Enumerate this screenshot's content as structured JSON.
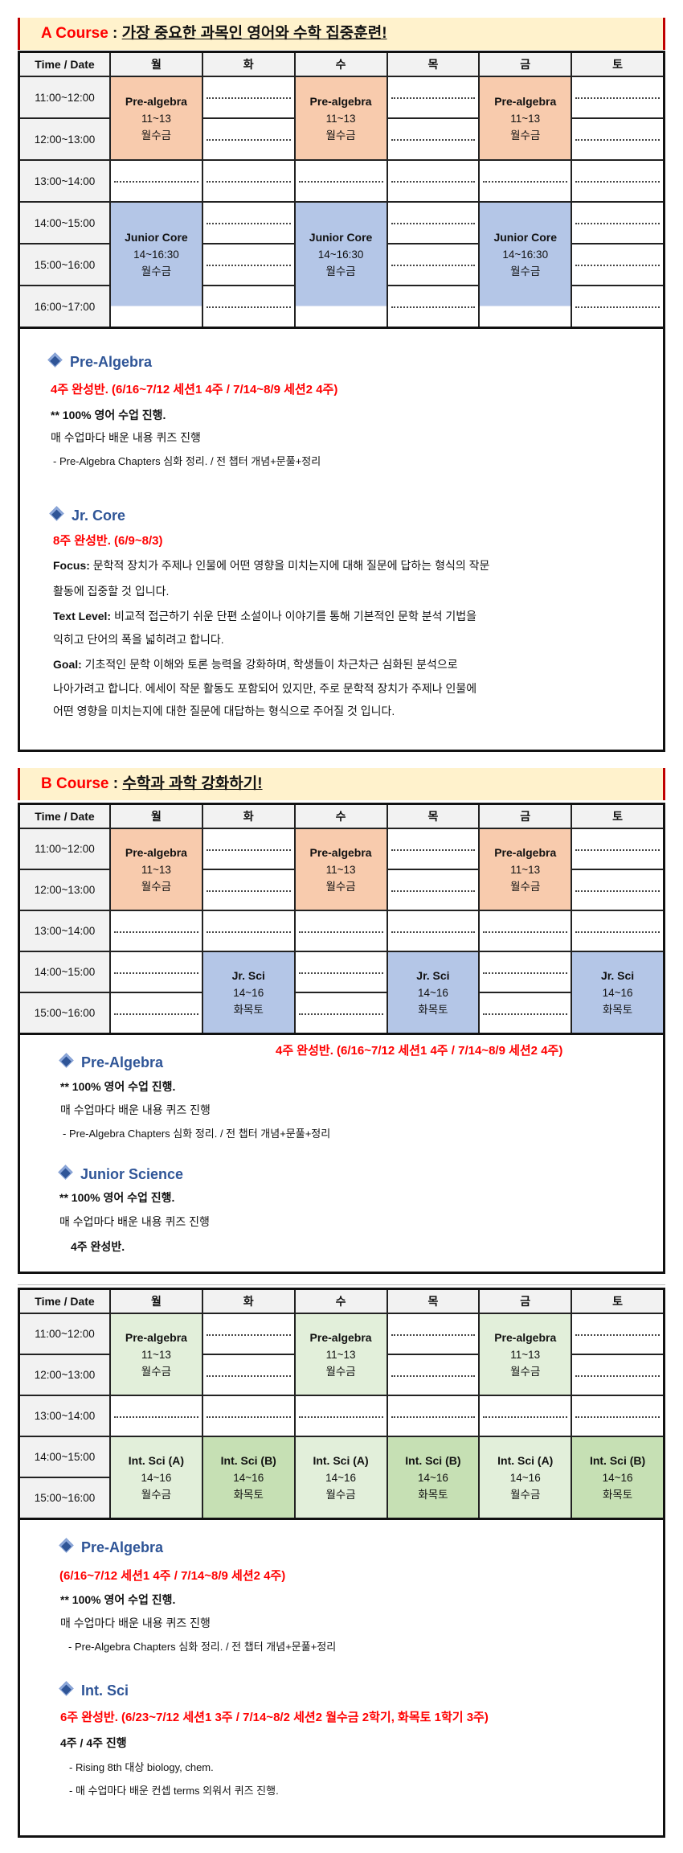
{
  "colors": {
    "orange": "#F8CBAD",
    "blue": "#B4C6E7",
    "green_light": "#E2EFDA",
    "green": "#C6E0B4",
    "accent_red": "#FF0000",
    "heading_blue": "#2F5597"
  },
  "courses": [
    {
      "label": "A Course",
      "sep": " : ",
      "title": "가장 중요한 과목인 영어와 수학 집중훈련!",
      "table": {
        "corner": "Time / Date",
        "days": [
          "월",
          "화",
          "수",
          "목",
          "금",
          "토"
        ],
        "times": [
          "11:00~12:00",
          "12:00~13:00",
          "13:00~14:00",
          "14:00~15:00",
          "15:00~16:00",
          "16:00~17:00"
        ],
        "blocks": [
          {
            "col": 1,
            "row": 0,
            "span": 2,
            "title": "Pre-algebra",
            "time": "11~13",
            "days": "월수금",
            "color": "#F8CBAD"
          },
          {
            "col": 3,
            "row": 0,
            "span": 2,
            "title": "Pre-algebra",
            "time": "11~13",
            "days": "월수금",
            "color": "#F8CBAD"
          },
          {
            "col": 5,
            "row": 0,
            "span": 2,
            "title": "Pre-algebra",
            "time": "11~13",
            "days": "월수금",
            "color": "#F8CBAD"
          },
          {
            "col": 1,
            "row": 3,
            "span": 2.5,
            "title": "Junior Core",
            "time": "14~16:30",
            "days": "월수금",
            "color": "#B4C6E7"
          },
          {
            "col": 3,
            "row": 3,
            "span": 2.5,
            "title": "Junior Core",
            "time": "14~16:30",
            "days": "월수금",
            "color": "#B4C6E7"
          },
          {
            "col": 5,
            "row": 3,
            "span": 2.5,
            "title": "Junior Core",
            "time": "14~16:30",
            "days": "월수금",
            "color": "#B4C6E7"
          }
        ]
      },
      "notes": {
        "pa_heading": "Pre-Algebra",
        "pa_schedule": "4주 완성반. (6/16~7/12 세션1 4주  /  7/14~8/9 세션2 4주)",
        "pa_english": "** 100% 영어 수업 진행.",
        "pa_quiz": "매 수업마다 배운 내용 퀴즈 진행",
        "pa_chapters": "- Pre-Algebra Chapters 심화 정리. / 전 챕터 개념+문풀+정리",
        "jc_heading": "Jr. Core",
        "jc_schedule": "8주 완성반. (6/9~8/3)",
        "focus_label": "Focus:",
        "focus_1": " 문학적 장치가 주제나 인물에 어떤 영향을 미치는지에 대해 질문에 답하는 형식의 작문",
        "focus_2": "활동에 집중할 것 입니다.",
        "level_label": "Text Level:",
        "level_1": " 비교적 접근하기 쉬운 단편 소설이나 이야기를 통해 기본적인 문학 분석 기법을",
        "level_2": "익히고 단어의 폭을 넓히려고 합니다.",
        "goal_label": "Goal:",
        "goal_1": " 기초적인 문학 이해와 토론 능력을 강화하며, 학생들이 차근차근 심화된 분석으로",
        "goal_2": "나아가려고 합니다. 에세이 작문 활동도 포함되어 있지만, 주로 문학적 장치가 주제나 인물에",
        "goal_3": "어떤 영향을 미치는지에 대한 질문에 대답하는 형식으로 주어질 것 입니다."
      }
    },
    {
      "label": "B Course",
      "sep": " : ",
      "title": "수학과 과학 강화하기!",
      "table": {
        "corner": "Time / Date",
        "days": [
          "월",
          "화",
          "수",
          "목",
          "금",
          "토"
        ],
        "times": [
          "11:00~12:00",
          "12:00~13:00",
          "13:00~14:00",
          "14:00~15:00",
          "15:00~16:00"
        ],
        "blocks": [
          {
            "col": 1,
            "row": 0,
            "span": 2,
            "title": "Pre-algebra",
            "time": "11~13",
            "days": "월수금",
            "color": "#F8CBAD"
          },
          {
            "col": 3,
            "row": 0,
            "span": 2,
            "title": "Pre-algebra",
            "time": "11~13",
            "days": "월수금",
            "color": "#F8CBAD"
          },
          {
            "col": 5,
            "row": 0,
            "span": 2,
            "title": "Pre-algebra",
            "time": "11~13",
            "days": "월수금",
            "color": "#F8CBAD"
          },
          {
            "col": 2,
            "row": 3,
            "span": 2,
            "title": "Jr. Sci",
            "time": "14~16",
            "days": "화목토",
            "color": "#B4C6E7"
          },
          {
            "col": 4,
            "row": 3,
            "span": 2,
            "title": "Jr. Sci",
            "time": "14~16",
            "days": "화목토",
            "color": "#B4C6E7"
          },
          {
            "col": 6,
            "row": 3,
            "span": 2,
            "title": "Jr. Sci",
            "time": "14~16",
            "days": "화목토",
            "color": "#B4C6E7"
          }
        ]
      },
      "notes": {
        "pa_heading": "Pre-Algebra",
        "pa_schedule": "4주 완성반. (6/16~7/12 세션1 4주  /  7/14~8/9 세션2 4주)",
        "pa_english": "** 100% 영어 수업 진행.",
        "pa_quiz": "매 수업마다 배운 내용 퀴즈 진행",
        "pa_chapters": "- Pre-Algebra Chapters 심화 정리. / 전 챕터 개념+문풀+정리",
        "js_heading": "Junior Science",
        "js_english": "** 100% 영어 수업 진행.",
        "js_quiz": "매 수업마다 배운 내용 퀴즈 진행",
        "js_weeks": "4주 완성반."
      }
    },
    {
      "table": {
        "corner": "Time / Date",
        "days": [
          "월",
          "화",
          "수",
          "목",
          "금",
          "토"
        ],
        "times": [
          "11:00~12:00",
          "12:00~13:00",
          "13:00~14:00",
          "14:00~15:00",
          "15:00~16:00"
        ],
        "blocks": [
          {
            "col": 1,
            "row": 0,
            "span": 2,
            "title": "Pre-algebra",
            "time": "11~13",
            "days": "월수금",
            "color": "#E2EFDA"
          },
          {
            "col": 3,
            "row": 0,
            "span": 2,
            "title": "Pre-algebra",
            "time": "11~13",
            "days": "월수금",
            "color": "#E2EFDA"
          },
          {
            "col": 5,
            "row": 0,
            "span": 2,
            "title": "Pre-algebra",
            "time": "11~13",
            "days": "월수금",
            "color": "#E2EFDA"
          },
          {
            "col": 1,
            "row": 3,
            "span": 2,
            "title": "Int. Sci (A)",
            "time": "14~16",
            "days": "월수금",
            "color": "#E2EFDA"
          },
          {
            "col": 2,
            "row": 3,
            "span": 2,
            "title": "Int. Sci (B)",
            "time": "14~16",
            "days": "화목토",
            "color": "#C6E0B4"
          },
          {
            "col": 3,
            "row": 3,
            "span": 2,
            "title": "Int. Sci (A)",
            "time": "14~16",
            "days": "월수금",
            "color": "#E2EFDA"
          },
          {
            "col": 4,
            "row": 3,
            "span": 2,
            "title": "Int. Sci (B)",
            "time": "14~16",
            "days": "화목토",
            "color": "#C6E0B4"
          },
          {
            "col": 5,
            "row": 3,
            "span": 2,
            "title": "Int. Sci (A)",
            "time": "14~16",
            "days": "월수금",
            "color": "#E2EFDA"
          },
          {
            "col": 6,
            "row": 3,
            "span": 2,
            "title": "Int. Sci (B)",
            "time": "14~16",
            "days": "화목토",
            "color": "#C6E0B4"
          }
        ]
      },
      "notes": {
        "pa_heading": "Pre-Algebra",
        "pa_schedule": "(6/16~7/12 세션1 4주  /  7/14~8/9 세션2 4주)",
        "pa_english": "** 100% 영어 수업 진행.",
        "pa_quiz": "매 수업마다 배운 내용 퀴즈 진행",
        "pa_chapters": "- Pre-Algebra Chapters 심화 정리. / 전 챕터 개념+문풀+정리",
        "is_heading": "Int. Sci",
        "is_schedule": "6주 완성반. (6/23~7/12 세션1 3주  /  7/14~8/2 세션2 월수금 2학기, 화목토 1학기 3주)",
        "is_weeks": "4주 / 4주 진행",
        "is_target": "- Rising 8th 대상 biology, chem.",
        "is_terms": "- 매 수업마다 배운 컨셉 terms 외워서 퀴즈 진행."
      }
    }
  ]
}
